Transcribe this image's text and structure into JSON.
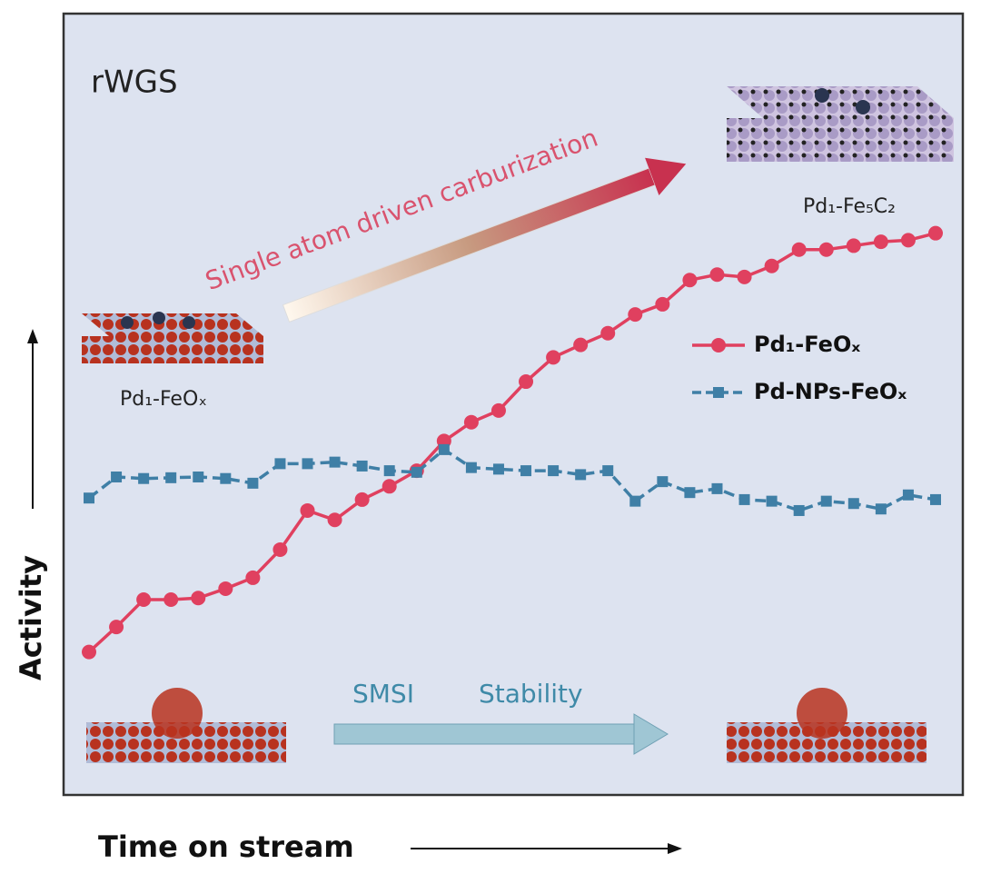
{
  "chart_data": {
    "type": "line",
    "title": "rWGS",
    "annotation": "Single atom driven carburization",
    "structure_labels": [
      "Pd₁-FeOₓ",
      "Pd₁-Fe₅C₂"
    ],
    "bottom_labels": [
      "SMSI",
      "Stability"
    ],
    "x_label": "Time on stream",
    "y_label": "Activity",
    "ylim": [
      0,
      100
    ],
    "series": [
      {
        "name": "Pd₁-FeOₓ",
        "color": "#e0405f",
        "marker": "circle",
        "values": [
          18.3,
          21.5,
          25,
          25,
          25.2,
          26.4,
          27.8,
          31.4,
          36.4,
          35.2,
          37.8,
          39.5,
          41.5,
          45.3,
          47.7,
          49.2,
          52.9,
          56,
          57.6,
          59.1,
          61.5,
          62.8,
          65.9,
          66.6,
          66.3,
          67.7,
          69.8,
          69.8,
          70.3,
          70.8,
          71,
          71.9
        ]
      },
      {
        "name": "Pd-NPs-FeOₓ",
        "color": "#3f7fa6",
        "marker": "square",
        "values": [
          38.0,
          40.7,
          40.5,
          40.6,
          40.7,
          40.5,
          39.9,
          42.4,
          42.4,
          42.6,
          42.1,
          41.5,
          41.3,
          44.2,
          41.9,
          41.7,
          41.5,
          41.5,
          41.0,
          41.5,
          37.6,
          40.1,
          38.7,
          39.2,
          37.8,
          37.6,
          36.4,
          37.6,
          37.3,
          36.6,
          38.4,
          37.8
        ]
      }
    ]
  }
}
